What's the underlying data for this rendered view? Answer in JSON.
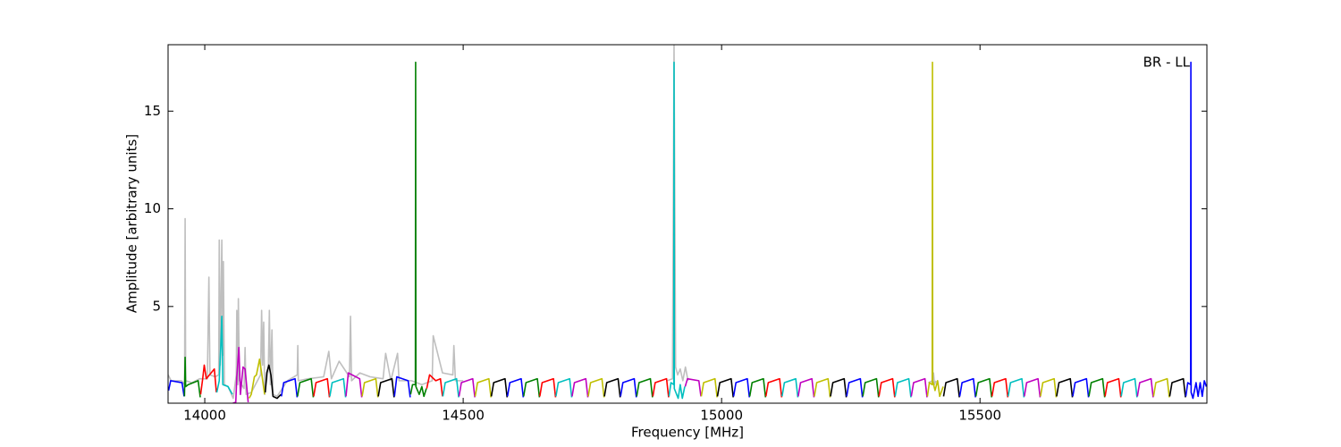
{
  "chart_data": {
    "type": "line",
    "xlabel": "Frequency [MHz]",
    "ylabel": "Amplitude [arbitrary units]",
    "annotation": "BR - LL",
    "xlim": [
      13929,
      15939
    ],
    "ylim": [
      0.05,
      18.4
    ],
    "xticks": [
      14000,
      14500,
      15000,
      15500
    ],
    "yticks": [
      5,
      10,
      15
    ],
    "series": [
      {
        "color": "#bfbfbf",
        "x": [
          13929,
          13935,
          13955,
          13961,
          13962,
          13963,
          13975,
          13990,
          14005,
          14008,
          14010,
          14020,
          14027,
          14028,
          14030,
          14033,
          14035,
          14036,
          14038,
          14045,
          14055,
          14061,
          14062,
          14064,
          14065,
          14067,
          14076,
          14078,
          14080,
          14090,
          14108,
          14110,
          14112,
          14114,
          14116,
          14123,
          14125,
          14127,
          14130,
          14132,
          14140,
          14160,
          14179,
          14180,
          14181,
          14200,
          14230,
          14240,
          14245,
          14260,
          14280,
          14282,
          14284,
          14300,
          14320,
          14345,
          14350,
          14360,
          14373,
          14376,
          14400,
          14420,
          14440,
          14442,
          14460,
          14480,
          14482,
          14485,
          14500
        ],
        "values": [
          1.5,
          1.2,
          1.2,
          1.0,
          9.5,
          1.2,
          1.1,
          1.3,
          1.3,
          6.5,
          1.5,
          1.4,
          1.5,
          8.4,
          2.0,
          8.4,
          2.5,
          7.3,
          1.0,
          0.9,
          0.3,
          1.5,
          4.8,
          1.0,
          5.4,
          1.2,
          0.8,
          2.9,
          0.5,
          0.6,
          1.5,
          4.8,
          2.0,
          4.2,
          0.5,
          1.8,
          4.8,
          1.0,
          3.8,
          0.5,
          0.4,
          1.2,
          1.5,
          3.0,
          1.2,
          1.3,
          1.4,
          2.7,
          1.3,
          2.2,
          1.4,
          4.5,
          1.2,
          1.6,
          1.4,
          1.3,
          2.6,
          1.2,
          2.6,
          1.2,
          1.2,
          1.0,
          1.2,
          3.5,
          1.6,
          1.5,
          3.0,
          1.2,
          1.2
        ]
      },
      {
        "color": "#bfbfbf",
        "x": [
          14895,
          14905,
          14908,
          14911,
          14915,
          14920,
          14925,
          14930,
          14935
        ],
        "values": [
          1.2,
          1.3,
          18.4,
          1.9,
          1.5,
          1.8,
          1.2,
          1.9,
          1.2
        ]
      },
      {
        "color": "#bfbfbf",
        "x": [
          15400,
          15408,
          15410,
          15412,
          15415
        ],
        "values": [
          1.1,
          1.2,
          1.6,
          1.0,
          1.2
        ]
      },
      {
        "color": "#0000ff",
        "x": [
          13930,
          13934,
          13956,
          13960
        ],
        "values": [
          0.7,
          1.2,
          1.1,
          0.4
        ]
      },
      {
        "color": "#008000",
        "x": [
          13960.75,
          13962,
          13963,
          13968,
          13987.25,
          13991.25
        ],
        "values": [
          0.4,
          2.4,
          0.9,
          1.0,
          1.2,
          0.35
        ]
      },
      {
        "color": "#ff0000",
        "x": [
          13992,
          13996,
          13999,
          14003,
          14018.5,
          14022.5
        ],
        "values": [
          0.5,
          1.3,
          2.0,
          1.3,
          1.8,
          0.6
        ]
      },
      {
        "color": "#00bfbf",
        "x": [
          14023.25,
          14028,
          14031,
          14033,
          14035,
          14045,
          14053.5
        ],
        "values": [
          0.6,
          1.2,
          3.0,
          4.5,
          1.0,
          0.9,
          0.5
        ]
      },
      {
        "color": "#bf00bf",
        "x": [
          14054.5,
          14060,
          14062,
          14066,
          14069,
          14074,
          14078,
          14084
        ],
        "values": [
          0.05,
          0.1,
          1.4,
          2.9,
          0.5,
          1.9,
          1.8,
          0.1
        ]
      },
      {
        "color": "#bfbf00",
        "x": [
          14085.75,
          14090,
          14096,
          14100,
          14106,
          14110,
          14115.75
        ],
        "values": [
          0.3,
          0.5,
          1.4,
          1.5,
          2.3,
          1.6,
          0.5
        ]
      },
      {
        "color": "#000000",
        "x": [
          14117,
          14120,
          14124,
          14128,
          14132,
          14140,
          14147.5
        ],
        "values": [
          0.6,
          1.6,
          2.0,
          1.5,
          0.4,
          0.3,
          0.5
        ]
      },
      {
        "color": "#0000ff",
        "x": [
          14148.25,
          14152.75,
          14174.75,
          14178.75
        ],
        "values": [
          0.4,
          1.1,
          1.3,
          0.35
        ]
      },
      {
        "color": "#008000",
        "x": [
          14179.5,
          14184,
          14206,
          14210
        ],
        "values": [
          0.4,
          1.1,
          1.3,
          0.35
        ]
      },
      {
        "color": "#ff0000",
        "x": [
          14210.75,
          14215.25,
          14237.25,
          14241.25
        ],
        "values": [
          0.4,
          1.1,
          1.3,
          0.35
        ]
      },
      {
        "color": "#00bfbf",
        "x": [
          14242,
          14246.5,
          14268.5,
          14272.5
        ],
        "values": [
          0.4,
          1.1,
          1.3,
          0.35
        ]
      },
      {
        "color": "#bf00bf",
        "x": [
          14273.25,
          14277.75,
          14299.75,
          14303.75
        ],
        "values": [
          0.4,
          1.6,
          1.3,
          0.35
        ]
      },
      {
        "color": "#bfbf00",
        "x": [
          14304.5,
          14309,
          14331,
          14335
        ],
        "values": [
          0.4,
          1.1,
          1.3,
          0.35
        ]
      },
      {
        "color": "#000000",
        "x": [
          14335.75,
          14340.25,
          14362.25,
          14366.25
        ],
        "values": [
          0.4,
          1.1,
          1.3,
          0.35
        ]
      },
      {
        "color": "#0000ff",
        "x": [
          14367,
          14371.5,
          14393.5,
          14397.5
        ],
        "values": [
          0.4,
          1.4,
          1.2,
          0.35
        ]
      },
      {
        "color": "#008000",
        "x": [
          14398.25,
          14402,
          14407.5,
          14408,
          14408.5,
          14415,
          14420,
          14424,
          14428.75
        ],
        "values": [
          0.5,
          1.0,
          1.0,
          17.5,
          0.9,
          0.5,
          0.9,
          0.4,
          0.8
        ]
      },
      {
        "color": "#ff0000",
        "x": [
          14429.5,
          14435,
          14447,
          14456,
          14460
        ],
        "values": [
          0.8,
          1.5,
          1.2,
          1.3,
          0.4
        ]
      },
      {
        "color": "#00bfbf",
        "x": [
          14460.75,
          14465.25,
          14487.25,
          14491.25
        ],
        "values": [
          0.4,
          1.1,
          1.3,
          0.35
        ]
      },
      {
        "color": "#bf00bf",
        "x": [
          14492,
          14496.5,
          14518.5,
          14522.5
        ],
        "values": [
          0.4,
          1.1,
          1.3,
          0.35
        ]
      },
      {
        "color": "#bfbf00",
        "x": [
          14523.25,
          14527.75,
          14549.75,
          14553.75
        ],
        "values": [
          0.4,
          1.1,
          1.3,
          0.35
        ]
      },
      {
        "color": "#000000",
        "x": [
          14554.5,
          14559,
          14581,
          14585
        ],
        "values": [
          0.4,
          1.1,
          1.3,
          0.35
        ]
      },
      {
        "color": "#0000ff",
        "x": [
          14585.75,
          14590.25,
          14612.25,
          14616.25
        ],
        "values": [
          0.4,
          1.1,
          1.3,
          0.35
        ]
      },
      {
        "color": "#008000",
        "x": [
          14617,
          14621.5,
          14643.5,
          14647.5
        ],
        "values": [
          0.4,
          1.1,
          1.3,
          0.35
        ]
      },
      {
        "color": "#ff0000",
        "x": [
          14648.25,
          14652.75,
          14674.75,
          14678.75
        ],
        "values": [
          0.4,
          1.1,
          1.3,
          0.35
        ]
      },
      {
        "color": "#00bfbf",
        "x": [
          14679.5,
          14684,
          14706,
          14710
        ],
        "values": [
          0.4,
          1.1,
          1.3,
          0.35
        ]
      },
      {
        "color": "#bf00bf",
        "x": [
          14710.75,
          14715.25,
          14737.25,
          14741.25
        ],
        "values": [
          0.4,
          1.1,
          1.3,
          0.35
        ]
      },
      {
        "color": "#bfbf00",
        "x": [
          14742,
          14746.5,
          14768.5,
          14772.5
        ],
        "values": [
          0.4,
          1.1,
          1.3,
          0.35
        ]
      },
      {
        "color": "#000000",
        "x": [
          14773.25,
          14777.75,
          14799.75,
          14803.75
        ],
        "values": [
          0.4,
          1.1,
          1.3,
          0.35
        ]
      },
      {
        "color": "#0000ff",
        "x": [
          14804.5,
          14809,
          14831,
          14835
        ],
        "values": [
          0.4,
          1.1,
          1.3,
          0.35
        ]
      },
      {
        "color": "#008000",
        "x": [
          14835.75,
          14840.25,
          14862.25,
          14866.25
        ],
        "values": [
          0.4,
          1.1,
          1.3,
          0.35
        ]
      },
      {
        "color": "#ff0000",
        "x": [
          14867,
          14871.5,
          14893.5,
          14897.5
        ],
        "values": [
          0.4,
          1.1,
          1.3,
          0.35
        ]
      },
      {
        "color": "#00bfbf",
        "x": [
          14898.25,
          14902,
          14907.5,
          14908,
          14908.5,
          14913,
          14916,
          14920,
          14924,
          14928.75
        ],
        "values": [
          0.4,
          1.1,
          1.0,
          17.5,
          0.8,
          0.5,
          0.3,
          1.0,
          0.3,
          0.9
        ]
      },
      {
        "color": "#bf00bf",
        "x": [
          14929.5,
          14934,
          14956,
          14960
        ],
        "values": [
          0.9,
          1.3,
          1.2,
          0.4
        ]
      },
      {
        "color": "#bfbf00",
        "x": [
          14960.75,
          14965.25,
          14987.25,
          14991.25
        ],
        "values": [
          0.4,
          1.1,
          1.3,
          0.35
        ]
      },
      {
        "color": "#000000",
        "x": [
          14992,
          14996.5,
          15018.5,
          15022.5
        ],
        "values": [
          0.4,
          1.1,
          1.3,
          0.35
        ]
      },
      {
        "color": "#0000ff",
        "x": [
          15023.25,
          15027.75,
          15049.75,
          15053.75
        ],
        "values": [
          0.4,
          1.1,
          1.3,
          0.35
        ]
      },
      {
        "color": "#008000",
        "x": [
          15054.5,
          15059,
          15081,
          15085
        ],
        "values": [
          0.4,
          1.1,
          1.3,
          0.35
        ]
      },
      {
        "color": "#ff0000",
        "x": [
          15085.75,
          15090.25,
          15112.25,
          15116.25
        ],
        "values": [
          0.4,
          1.1,
          1.3,
          0.35
        ]
      },
      {
        "color": "#00bfbf",
        "x": [
          15117,
          15121.5,
          15143.5,
          15147.5
        ],
        "values": [
          0.4,
          1.1,
          1.3,
          0.35
        ]
      },
      {
        "color": "#bf00bf",
        "x": [
          15148.25,
          15152.75,
          15174.75,
          15178.75
        ],
        "values": [
          0.4,
          1.1,
          1.3,
          0.35
        ]
      },
      {
        "color": "#bfbf00",
        "x": [
          15179.5,
          15184,
          15206,
          15210
        ],
        "values": [
          0.4,
          1.1,
          1.3,
          0.35
        ]
      },
      {
        "color": "#000000",
        "x": [
          15210.75,
          15215.25,
          15237.25,
          15241.25
        ],
        "values": [
          0.4,
          1.1,
          1.3,
          0.35
        ]
      },
      {
        "color": "#0000ff",
        "x": [
          15242,
          15246.5,
          15268.5,
          15272.5
        ],
        "values": [
          0.4,
          1.1,
          1.3,
          0.35
        ]
      },
      {
        "color": "#008000",
        "x": [
          15273.25,
          15277.75,
          15299.75,
          15303.75
        ],
        "values": [
          0.4,
          1.1,
          1.3,
          0.35
        ]
      },
      {
        "color": "#ff0000",
        "x": [
          15304.5,
          15309,
          15331,
          15335
        ],
        "values": [
          0.4,
          1.1,
          1.3,
          0.35
        ]
      },
      {
        "color": "#00bfbf",
        "x": [
          15335.75,
          15340.25,
          15362.25,
          15366.25
        ],
        "values": [
          0.4,
          1.1,
          1.3,
          0.35
        ]
      },
      {
        "color": "#bf00bf",
        "x": [
          15367,
          15371.5,
          15393.5,
          15397.5
        ],
        "values": [
          0.4,
          1.1,
          1.3,
          0.35
        ]
      },
      {
        "color": "#bfbf00",
        "x": [
          15398.25,
          15402,
          15407.5,
          15408,
          15408.5,
          15413,
          15418,
          15422,
          15428.75
        ],
        "values": [
          0.4,
          1.1,
          1.0,
          17.5,
          1.2,
          0.7,
          1.2,
          0.4,
          0.9
        ]
      },
      {
        "color": "#000000",
        "x": [
          15429.5,
          15434,
          15456,
          15460
        ],
        "values": [
          0.4,
          1.1,
          1.3,
          0.35
        ]
      },
      {
        "color": "#0000ff",
        "x": [
          15460.75,
          15465.25,
          15487.25,
          15491.25
        ],
        "values": [
          0.4,
          1.1,
          1.3,
          0.35
        ]
      },
      {
        "color": "#008000",
        "x": [
          15492,
          15496.5,
          15518.5,
          15522.5
        ],
        "values": [
          0.4,
          1.1,
          1.3,
          0.35
        ]
      },
      {
        "color": "#ff0000",
        "x": [
          15523.25,
          15527.75,
          15549.75,
          15553.75
        ],
        "values": [
          0.4,
          1.1,
          1.3,
          0.35
        ]
      },
      {
        "color": "#00bfbf",
        "x": [
          15554.5,
          15559,
          15581,
          15585
        ],
        "values": [
          0.4,
          1.1,
          1.3,
          0.35
        ]
      },
      {
        "color": "#bf00bf",
        "x": [
          15585.75,
          15590.25,
          15612.25,
          15616.25
        ],
        "values": [
          0.4,
          1.1,
          1.3,
          0.35
        ]
      },
      {
        "color": "#bfbf00",
        "x": [
          15617,
          15621.5,
          15643.5,
          15647.5
        ],
        "values": [
          0.4,
          1.1,
          1.3,
          0.35
        ]
      },
      {
        "color": "#000000",
        "x": [
          15648.25,
          15652.75,
          15674.75,
          15678.75
        ],
        "values": [
          0.4,
          1.1,
          1.3,
          0.35
        ]
      },
      {
        "color": "#0000ff",
        "x": [
          15679.5,
          15684,
          15706,
          15710
        ],
        "values": [
          0.4,
          1.1,
          1.3,
          0.35
        ]
      },
      {
        "color": "#008000",
        "x": [
          15710.75,
          15715.25,
          15737.25,
          15741.25
        ],
        "values": [
          0.4,
          1.1,
          1.3,
          0.35
        ]
      },
      {
        "color": "#ff0000",
        "x": [
          15742,
          15746.5,
          15768.5,
          15772.5
        ],
        "values": [
          0.4,
          1.1,
          1.3,
          0.35
        ]
      },
      {
        "color": "#00bfbf",
        "x": [
          15773.25,
          15777.75,
          15799.75,
          15803.75
        ],
        "values": [
          0.4,
          1.1,
          1.3,
          0.35
        ]
      },
      {
        "color": "#bf00bf",
        "x": [
          15804.5,
          15809,
          15831,
          15835
        ],
        "values": [
          0.4,
          1.1,
          1.3,
          0.35
        ]
      },
      {
        "color": "#bfbf00",
        "x": [
          15835.75,
          15840.25,
          15862.25,
          15866.25
        ],
        "values": [
          0.4,
          1.1,
          1.3,
          0.35
        ]
      },
      {
        "color": "#000000",
        "x": [
          15867,
          15871.5,
          15893.5,
          15897.5
        ],
        "values": [
          0.4,
          1.1,
          1.3,
          0.35
        ]
      },
      {
        "color": "#0000ff",
        "x": [
          15898.25,
          15902,
          15907.5,
          15908,
          15908.5,
          15912,
          15918,
          15922,
          15926,
          15930,
          15934,
          15938
        ],
        "values": [
          0.4,
          1.1,
          1.0,
          17.5,
          0.6,
          0.3,
          1.1,
          0.4,
          1.1,
          0.4,
          1.2,
          0.9
        ]
      }
    ]
  }
}
